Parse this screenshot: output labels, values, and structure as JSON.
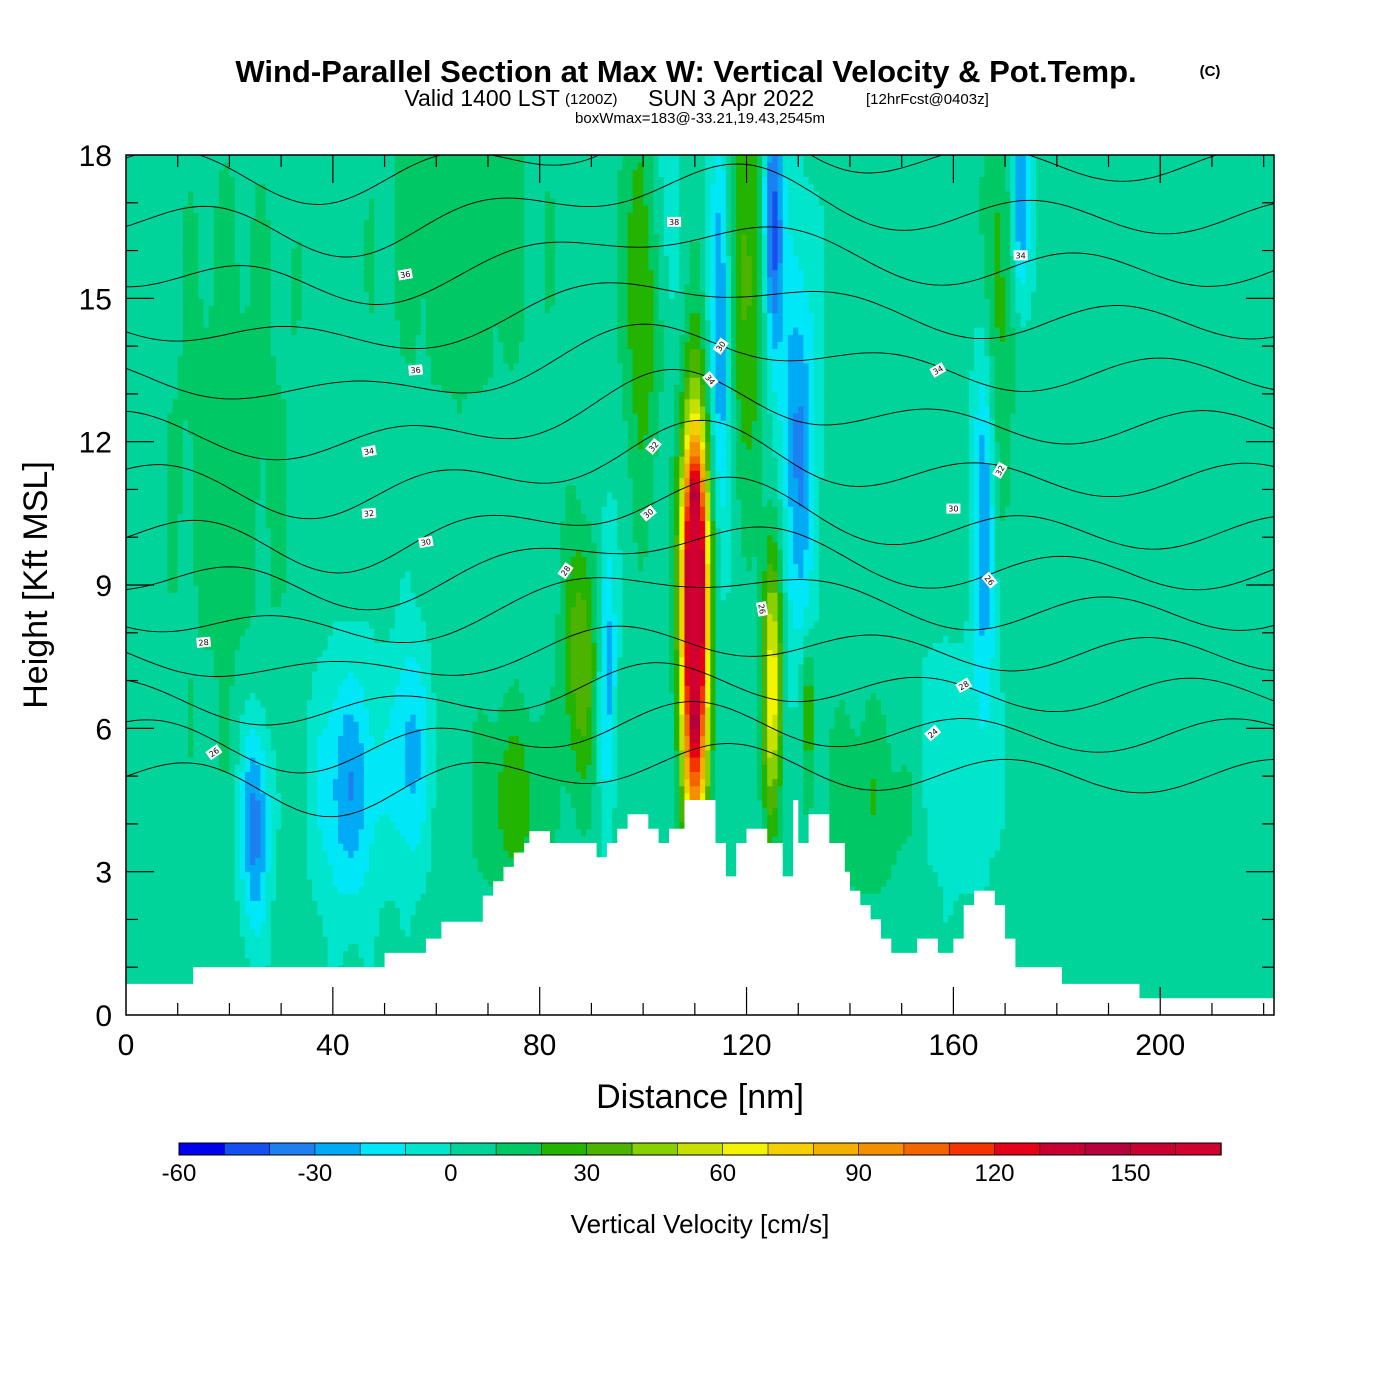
{
  "chart_data": {
    "type": "heatmap",
    "title": "Wind-Parallel Section at Max W: Vertical Velocity & Pot.Temp.",
    "title_copyright": "(C)",
    "subtitle_prefix": "Valid 1400 LST",
    "subtitle_utc": "(1200Z)",
    "subtitle_date": "SUN 3 Apr 2022",
    "subtitle_forecast": "[12hrFcst@0403z]",
    "subtitle_box": "boxWmax=183@-33.21,19.43,2545m",
    "xlabel": "Distance [nm]",
    "ylabel": "Height [Kft MSL]",
    "xlim": [
      0,
      222
    ],
    "ylim": [
      0,
      18
    ],
    "xticks": [
      "0",
      "40",
      "80",
      "120",
      "160",
      "200"
    ],
    "xtick_values": [
      0,
      40,
      80,
      120,
      160,
      200
    ],
    "yticks": [
      "0",
      "3",
      "6",
      "9",
      "12",
      "15",
      "18"
    ],
    "ytick_values": [
      0,
      3,
      6,
      9,
      12,
      15,
      18
    ],
    "colorbar": {
      "label": "Vertical Velocity [cm/s]",
      "min": -60,
      "max": 170,
      "step": 10,
      "tick_labels": [
        "-60",
        "-30",
        "0",
        "30",
        "60",
        "90",
        "120",
        "150"
      ],
      "tick_values": [
        -60,
        -30,
        0,
        30,
        60,
        90,
        120,
        150
      ],
      "colors": [
        "#0000ee",
        "#1450f0",
        "#1e80f0",
        "#00aaf4",
        "#00e8f8",
        "#00e6cc",
        "#00d49a",
        "#00c864",
        "#22b400",
        "#4cb400",
        "#88d000",
        "#c8e000",
        "#f4f400",
        "#f4d000",
        "#f4b000",
        "#f49000",
        "#f46400",
        "#f43400",
        "#e60018",
        "#c80032",
        "#b4003c",
        "#c80032",
        "#d00030"
      ]
    },
    "terrain": [
      [
        0,
        0.65
      ],
      [
        13,
        0.65
      ],
      [
        13,
        1.0
      ],
      [
        50,
        1.0
      ],
      [
        50,
        1.3
      ],
      [
        58,
        1.3
      ],
      [
        58,
        1.6
      ],
      [
        61,
        1.6
      ],
      [
        61,
        1.95
      ],
      [
        69,
        1.95
      ],
      [
        69,
        2.5
      ],
      [
        71,
        2.5
      ],
      [
        71,
        2.8
      ],
      [
        73,
        2.8
      ],
      [
        73,
        3.1
      ],
      [
        75,
        3.1
      ],
      [
        75,
        3.4
      ],
      [
        77,
        3.4
      ],
      [
        77,
        3.6
      ],
      [
        78,
        3.6
      ],
      [
        78,
        3.85
      ],
      [
        82,
        3.85
      ],
      [
        82,
        3.6
      ],
      [
        91,
        3.6
      ],
      [
        91,
        3.3
      ],
      [
        93,
        3.3
      ],
      [
        93,
        3.6
      ],
      [
        95,
        3.6
      ],
      [
        95,
        3.9
      ],
      [
        97,
        3.9
      ],
      [
        97,
        4.2
      ],
      [
        101,
        4.2
      ],
      [
        101,
        3.9
      ],
      [
        103,
        3.9
      ],
      [
        103,
        3.6
      ],
      [
        105,
        3.6
      ],
      [
        105,
        3.9
      ],
      [
        108,
        3.9
      ],
      [
        108,
        4.5
      ],
      [
        114,
        4.5
      ],
      [
        114,
        3.6
      ],
      [
        116,
        3.6
      ],
      [
        116,
        2.9
      ],
      [
        118,
        2.9
      ],
      [
        118,
        3.6
      ],
      [
        120,
        3.6
      ],
      [
        120,
        3.9
      ],
      [
        124,
        3.9
      ],
      [
        124,
        3.6
      ],
      [
        127,
        3.6
      ],
      [
        127,
        2.9
      ],
      [
        129,
        2.9
      ],
      [
        129,
        4.5
      ],
      [
        130,
        4.5
      ],
      [
        130,
        3.6
      ],
      [
        132,
        3.6
      ],
      [
        132,
        4.2
      ],
      [
        136,
        4.2
      ],
      [
        136,
        3.6
      ],
      [
        139,
        3.6
      ],
      [
        139,
        3.0
      ],
      [
        140,
        3.0
      ],
      [
        140,
        2.6
      ],
      [
        142,
        2.6
      ],
      [
        142,
        2.3
      ],
      [
        144,
        2.3
      ],
      [
        144,
        2.0
      ],
      [
        146,
        2.0
      ],
      [
        146,
        1.6
      ],
      [
        148,
        1.6
      ],
      [
        148,
        1.3
      ],
      [
        153,
        1.3
      ],
      [
        153,
        1.6
      ],
      [
        157,
        1.6
      ],
      [
        157,
        1.3
      ],
      [
        160,
        1.3
      ],
      [
        160,
        1.6
      ],
      [
        162,
        1.6
      ],
      [
        162,
        2.3
      ],
      [
        164,
        2.3
      ],
      [
        164,
        2.6
      ],
      [
        168,
        2.6
      ],
      [
        168,
        2.3
      ],
      [
        170,
        2.3
      ],
      [
        170,
        1.6
      ],
      [
        172,
        1.6
      ],
      [
        172,
        1.0
      ],
      [
        181,
        1.0
      ],
      [
        181,
        0.65
      ],
      [
        196,
        0.65
      ],
      [
        196,
        0.35
      ],
      [
        222,
        0.35
      ],
      [
        222,
        0
      ]
    ],
    "w_features": [
      {
        "x": 110,
        "y": 8.0,
        "sx": 1.8,
        "sy": 3.0,
        "w": 175
      },
      {
        "x": 110,
        "y": 10.3,
        "sx": 1.4,
        "sy": 1.2,
        "w": 45
      },
      {
        "x": 125,
        "y": 7.0,
        "sx": 1.3,
        "sy": 2.0,
        "w": 65
      },
      {
        "x": 132,
        "y": 6.5,
        "sx": 0.9,
        "sy": 1.0,
        "w": 25
      },
      {
        "x": 88,
        "y": 7.5,
        "sx": 2.5,
        "sy": 1.8,
        "w": 35
      },
      {
        "x": 100,
        "y": 15.5,
        "sx": 2.5,
        "sy": 3.0,
        "w": 30
      },
      {
        "x": 120,
        "y": 15.5,
        "sx": 3.0,
        "sy": 3.0,
        "w": 30
      },
      {
        "x": 168,
        "y": 15.0,
        "sx": 2.5,
        "sy": 3.0,
        "w": 25
      },
      {
        "x": 75,
        "y": 4.5,
        "sx": 5.0,
        "sy": 1.4,
        "w": 22
      },
      {
        "x": 145,
        "y": 4.5,
        "sx": 8.0,
        "sy": 1.5,
        "w": 15
      },
      {
        "x": 25,
        "y": 4.0,
        "sx": 2.0,
        "sy": 1.6,
        "w": -42
      },
      {
        "x": 43,
        "y": 4.8,
        "sx": 4.5,
        "sy": 1.8,
        "w": -32
      },
      {
        "x": 55,
        "y": 5.5,
        "sx": 2.5,
        "sy": 1.7,
        "w": -28
      },
      {
        "x": 93,
        "y": 7.5,
        "sx": 1.3,
        "sy": 2.0,
        "w": -32
      },
      {
        "x": 115,
        "y": 14.5,
        "sx": 1.5,
        "sy": 3.0,
        "w": -40
      },
      {
        "x": 125,
        "y": 16.5,
        "sx": 1.4,
        "sy": 2.0,
        "w": -55
      },
      {
        "x": 130,
        "y": 12.0,
        "sx": 2.5,
        "sy": 3.0,
        "w": -35
      },
      {
        "x": 166,
        "y": 11.0,
        "sx": 1.6,
        "sy": 3.5,
        "w": -35
      },
      {
        "x": 173,
        "y": 17.0,
        "sx": 1.2,
        "sy": 1.5,
        "w": -40
      },
      {
        "x": 103,
        "y": 17.0,
        "sx": 2.5,
        "sy": 2.0,
        "w": -15
      },
      {
        "x": 158,
        "y": 5.0,
        "sx": 6.0,
        "sy": 2.0,
        "w": -12
      },
      {
        "x": 65,
        "y": 16.5,
        "sx": 12.0,
        "sy": 3.0,
        "w": 12
      },
      {
        "x": 20,
        "y": 12.0,
        "sx": 10.0,
        "sy": 5.0,
        "w": 10
      }
    ],
    "theta_contours": {
      "levels": [
        24,
        25,
        26,
        27,
        28,
        29,
        30,
        31,
        32,
        33,
        34,
        35,
        36,
        37,
        38,
        39
      ],
      "labels": [
        {
          "text": "38",
          "x": 106,
          "y": 16.6,
          "angle": 0
        },
        {
          "text": "36",
          "x": 54,
          "y": 15.5,
          "angle": -10
        },
        {
          "text": "36",
          "x": 56,
          "y": 13.5,
          "angle": -5
        },
        {
          "text": "34",
          "x": 47,
          "y": 11.8,
          "angle": -10
        },
        {
          "text": "32",
          "x": 47,
          "y": 10.5,
          "angle": -5
        },
        {
          "text": "30",
          "x": 58,
          "y": 9.9,
          "angle": -10
        },
        {
          "text": "28",
          "x": 15,
          "y": 7.8,
          "angle": -5
        },
        {
          "text": "26",
          "x": 17,
          "y": 5.5,
          "angle": -35
        },
        {
          "text": "30",
          "x": 115,
          "y": 14.0,
          "angle": -55
        },
        {
          "text": "34",
          "x": 113,
          "y": 13.3,
          "angle": 50
        },
        {
          "text": "32",
          "x": 102,
          "y": 11.9,
          "angle": -50
        },
        {
          "text": "30",
          "x": 101,
          "y": 10.5,
          "angle": -40
        },
        {
          "text": "28",
          "x": 85,
          "y": 9.3,
          "angle": -55
        },
        {
          "text": "26",
          "x": 123,
          "y": 8.5,
          "angle": 80
        },
        {
          "text": "34",
          "x": 173,
          "y": 15.9,
          "angle": 0
        },
        {
          "text": "34",
          "x": 157,
          "y": 13.5,
          "angle": -30
        },
        {
          "text": "32",
          "x": 169,
          "y": 11.4,
          "angle": -60
        },
        {
          "text": "30",
          "x": 160,
          "y": 10.6,
          "angle": 0
        },
        {
          "text": "26",
          "x": 167,
          "y": 9.1,
          "angle": 50
        },
        {
          "text": "28",
          "x": 162,
          "y": 6.9,
          "angle": -30
        },
        {
          "text": "24",
          "x": 156,
          "y": 5.9,
          "angle": -40
        }
      ]
    }
  }
}
